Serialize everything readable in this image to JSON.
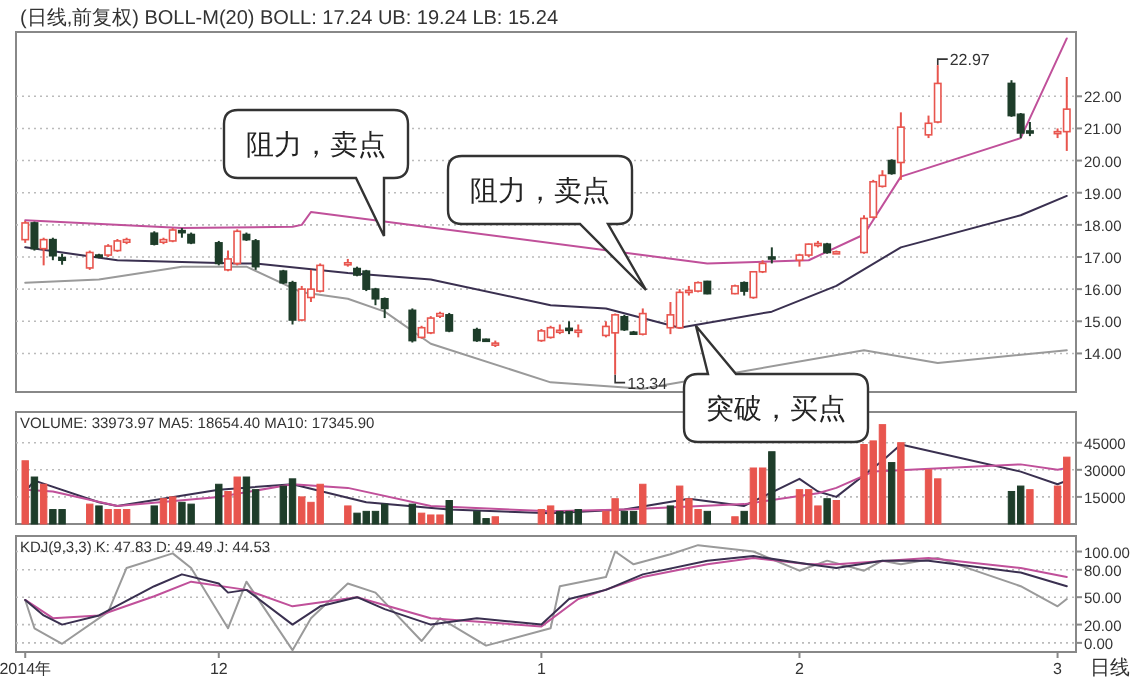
{
  "chart_data": [
    {
      "type": "candlestick",
      "title": "(日线,前复权) BOLL-M(20) BOLL: 17.24 UB: 19.24 LB: 15.24",
      "grid": "y",
      "tick_labels": "y",
      "x": [
        "2014-11-10",
        "2014-11-11",
        "2014-11-12",
        "2014-11-13",
        "2014-11-14",
        "2014-11-17",
        "2014-11-18",
        "2014-11-19",
        "2014-11-20",
        "2014-11-21",
        "2014-11-24",
        "2014-11-25",
        "2014-11-26",
        "2014-11-27",
        "2014-11-28",
        "2014-12-01",
        "2014-12-02",
        "2014-12-03",
        "2014-12-04",
        "2014-12-05",
        "2014-12-08",
        "2014-12-09",
        "2014-12-10",
        "2014-12-11",
        "2014-12-12",
        "2014-12-15",
        "2014-12-16",
        "2014-12-17",
        "2014-12-18",
        "2014-12-19",
        "2014-12-22",
        "2014-12-23",
        "2014-12-24",
        "2014-12-25",
        "2014-12-26",
        "2014-12-29",
        "2014-12-30",
        "2014-12-31",
        "2015-01-05",
        "2015-01-06",
        "2015-01-07",
        "2015-01-08",
        "2015-01-09",
        "2015-01-12",
        "2015-01-13",
        "2015-01-14",
        "2015-01-15",
        "2015-01-16",
        "2015-01-19",
        "2015-01-20",
        "2015-01-21",
        "2015-01-22",
        "2015-01-23",
        "2015-01-26",
        "2015-01-27",
        "2015-01-28",
        "2015-01-29",
        "2015-01-30",
        "2015-02-02",
        "2015-02-03",
        "2015-02-04",
        "2015-02-05",
        "2015-02-06",
        "2015-02-09",
        "2015-02-10",
        "2015-02-11",
        "2015-02-12",
        "2015-02-13",
        "2015-02-16",
        "2015-02-17",
        "2015-02-25",
        "2015-02-26",
        "2015-02-27",
        "2015-03-02",
        "2015-03-03"
      ],
      "xlim": [
        "2014-11-09",
        "2015-03-04"
      ],
      "ylim": [
        12.8,
        24.0
      ],
      "yticks": [
        {
          "value": 14,
          "label": "14.00"
        },
        {
          "value": 15,
          "label": "15.00"
        },
        {
          "value": 16,
          "label": "16.00"
        },
        {
          "value": 17,
          "label": "17.00"
        },
        {
          "value": 18,
          "label": "18.00"
        },
        {
          "value": 19,
          "label": "19.00"
        },
        {
          "value": 20,
          "label": "20.00"
        },
        {
          "value": 21,
          "label": "21.00"
        },
        {
          "value": 22,
          "label": "22.00"
        }
      ],
      "series": [
        {
          "ohlc": [
            [
              17.54,
              18.12,
              17.44,
              18.06
            ],
            [
              18.06,
              18.1,
              17.2,
              17.26
            ],
            [
              17.26,
              17.6,
              16.74,
              17.54
            ],
            [
              17.54,
              17.6,
              16.9,
              17.04
            ],
            [
              16.98,
              17.1,
              16.76,
              16.9
            ],
            [
              16.66,
              17.2,
              16.6,
              17.14
            ],
            [
              17.06,
              17.1,
              16.96,
              17.0
            ],
            [
              17.06,
              17.4,
              17.0,
              17.34
            ],
            [
              17.2,
              17.56,
              17.16,
              17.5
            ],
            [
              17.46,
              17.6,
              17.4,
              17.54
            ],
            [
              17.74,
              17.8,
              17.36,
              17.4
            ],
            [
              17.46,
              17.6,
              17.4,
              17.54
            ],
            [
              17.5,
              17.9,
              17.46,
              17.84
            ],
            [
              17.82,
              17.9,
              17.6,
              17.76
            ],
            [
              17.7,
              17.76,
              17.4,
              17.44
            ],
            [
              17.44,
              17.5,
              16.74,
              16.8
            ],
            [
              16.6,
              17.2,
              16.56,
              16.94
            ],
            [
              16.8,
              17.86,
              16.74,
              17.8
            ],
            [
              17.7,
              17.76,
              17.5,
              17.54
            ],
            [
              17.5,
              17.56,
              16.6,
              16.7
            ],
            [
              16.56,
              16.6,
              16.16,
              16.2
            ],
            [
              16.2,
              16.26,
              14.9,
              15.04
            ],
            [
              15.04,
              16.1,
              15.0,
              16.0
            ],
            [
              15.74,
              16.6,
              15.6,
              16.0
            ],
            [
              15.94,
              16.8,
              15.9,
              16.74
            ],
            [
              16.78,
              16.94,
              16.7,
              16.82
            ],
            [
              16.64,
              16.7,
              16.4,
              16.44
            ],
            [
              16.56,
              16.6,
              15.94,
              16.0
            ],
            [
              16.0,
              16.04,
              15.5,
              15.7
            ],
            [
              15.7,
              15.74,
              15.1,
              15.4
            ],
            [
              15.34,
              15.4,
              14.34,
              14.4
            ],
            [
              14.5,
              14.86,
              14.46,
              14.8
            ],
            [
              14.64,
              15.16,
              14.6,
              15.1
            ],
            [
              15.16,
              15.3,
              15.1,
              15.24
            ],
            [
              15.2,
              15.26,
              14.66,
              14.7
            ],
            [
              14.74,
              14.8,
              14.36,
              14.4
            ],
            [
              14.44,
              14.46,
              14.36,
              14.4
            ],
            [
              14.3,
              14.4,
              14.2,
              14.32
            ],
            [
              14.4,
              14.76,
              14.36,
              14.7
            ],
            [
              14.5,
              14.86,
              14.46,
              14.8
            ],
            [
              14.66,
              14.9,
              14.6,
              14.72
            ],
            [
              14.78,
              15.0,
              14.6,
              14.72
            ],
            [
              14.7,
              14.9,
              14.5,
              14.72
            ],
            [
              14.56,
              15.0,
              14.5,
              14.84
            ],
            [
              14.64,
              15.24,
              13.34,
              15.2
            ],
            [
              15.14,
              15.2,
              14.7,
              14.74
            ],
            [
              14.66,
              14.7,
              14.6,
              14.62
            ],
            [
              14.6,
              15.4,
              14.56,
              15.24
            ],
            [
              14.8,
              15.6,
              14.6,
              15.2
            ],
            [
              14.8,
              16.0,
              14.76,
              15.9
            ],
            [
              15.9,
              16.1,
              15.8,
              15.96
            ],
            [
              15.94,
              16.24,
              15.9,
              16.2
            ],
            [
              16.24,
              16.26,
              15.84,
              15.86
            ],
            [
              15.86,
              16.14,
              15.84,
              16.1
            ],
            [
              16.2,
              16.24,
              15.8,
              15.94
            ],
            [
              15.74,
              16.56,
              15.7,
              16.54
            ],
            [
              16.54,
              16.9,
              16.5,
              16.8
            ],
            [
              17.0,
              17.3,
              16.8,
              16.96
            ],
            [
              16.9,
              17.1,
              16.7,
              17.06
            ],
            [
              17.06,
              17.42,
              17.0,
              17.4
            ],
            [
              17.38,
              17.5,
              17.3,
              17.42
            ],
            [
              17.4,
              17.44,
              17.1,
              17.14
            ],
            [
              17.12,
              17.2,
              17.1,
              17.16
            ],
            [
              17.14,
              18.3,
              17.1,
              18.2
            ],
            [
              18.24,
              19.4,
              18.2,
              19.34
            ],
            [
              19.2,
              19.7,
              19.16,
              19.54
            ],
            [
              20.0,
              20.04,
              19.56,
              19.6
            ],
            [
              19.94,
              21.5,
              19.4,
              21.04
            ],
            [
              20.8,
              21.4,
              20.7,
              21.16
            ],
            [
              21.2,
              22.97,
              21.16,
              22.4
            ],
            [
              22.4,
              22.5,
              21.36,
              21.4
            ],
            [
              21.44,
              21.48,
              20.7,
              20.86
            ],
            [
              20.92,
              21.2,
              20.76,
              20.9
            ],
            [
              20.86,
              21.0,
              20.7,
              20.9
            ],
            [
              20.9,
              22.6,
              20.3,
              21.6
            ]
          ],
          "colors": [
            "#e8554e",
            "#1e3d2a",
            "#e8554e",
            "#1e3d2a",
            "#1e3d2a",
            "#e8554e",
            "#1e3d2a",
            "#e8554e",
            "#e8554e",
            "#e8554e",
            "#1e3d2a",
            "#e8554e",
            "#e8554e",
            "#1e3d2a",
            "#1e3d2a",
            "#1e3d2a",
            "#e8554e",
            "#e8554e",
            "#1e3d2a",
            "#1e3d2a",
            "#1e3d2a",
            "#1e3d2a",
            "#e8554e",
            "#e8554e",
            "#e8554e",
            "#e8554e",
            "#1e3d2a",
            "#1e3d2a",
            "#1e3d2a",
            "#1e3d2a",
            "#1e3d2a",
            "#e8554e",
            "#e8554e",
            "#e8554e",
            "#1e3d2a",
            "#1e3d2a",
            "#1e3d2a",
            "#e8554e",
            "#e8554e",
            "#e8554e",
            "#e8554e",
            "#1e3d2a",
            "#e8554e",
            "#e8554e",
            "#e8554e",
            "#1e3d2a",
            "#1e3d2a",
            "#e8554e",
            "#e8554e",
            "#e8554e",
            "#e8554e",
            "#e8554e",
            "#1e3d2a",
            "#e8554e",
            "#1e3d2a",
            "#e8554e",
            "#e8554e",
            "#1e3d2a",
            "#e8554e",
            "#e8554e",
            "#e8554e",
            "#1e3d2a",
            "#e8554e",
            "#e8554e",
            "#e8554e",
            "#e8554e",
            "#1e3d2a",
            "#e8554e",
            "#e8554e",
            "#e8554e",
            "#1e3d2a",
            "#1e3d2a",
            "#1e3d2a",
            "#e8554e",
            "#e8554e"
          ]
        },
        {
          "type": "line",
          "color": "#c0509a",
          "x": [
            "2014-11-10",
            "2014-11-27",
            "2014-12-09",
            "2014-12-10",
            "2014-12-11",
            "2015-01-23",
            "2015-02-03",
            "2015-02-09",
            "2015-02-13",
            "2015-02-26",
            "2015-03-03"
          ],
          "values": [
            18.14,
            17.9,
            17.94,
            18.0,
            18.4,
            16.8,
            16.9,
            17.7,
            19.5,
            20.7,
            23.8
          ]
        },
        {
          "type": "line",
          "color": "#3a3050",
          "x": [
            "2014-11-10",
            "2014-11-20",
            "2014-12-03",
            "2014-12-05",
            "2014-12-15",
            "2014-12-24",
            "2015-01-06",
            "2015-01-12",
            "2015-01-20",
            "2015-01-30",
            "2015-02-06",
            "2015-02-13",
            "2015-02-26",
            "2015-03-03"
          ],
          "values": [
            17.3,
            16.9,
            16.8,
            16.8,
            16.5,
            16.3,
            15.5,
            15.4,
            14.8,
            15.3,
            16.1,
            17.3,
            18.3,
            18.9
          ]
        },
        {
          "type": "line",
          "color": "#9a9a9a",
          "x": [
            "2014-11-10",
            "2014-11-18",
            "2014-11-27",
            "2014-12-04",
            "2014-12-10",
            "2014-12-15",
            "2014-12-19",
            "2014-12-24",
            "2015-01-06",
            "2015-01-16",
            "2015-02-09",
            "2015-02-17",
            "2015-03-03"
          ],
          "values": [
            16.2,
            16.3,
            16.7,
            16.7,
            15.9,
            15.7,
            15.3,
            14.3,
            13.1,
            12.9,
            14.1,
            13.7,
            14.1
          ]
        }
      ],
      "annotations": [
        "阻力，卖点",
        "阻力，卖点",
        "突破，买点",
        {
          "text": "22.97",
          "x": "2015-02-17",
          "y": 22.97
        },
        {
          "text": "13.34",
          "x": "2015-01-13",
          "y": 13.34
        }
      ]
    },
    {
      "type": "bar",
      "title": "VOLUME: 33973.97 MA5: 18654.40 MA10: 17345.90",
      "grid": "y",
      "tick_labels": "y",
      "x": [
        "2014-11-10",
        "2014-11-11",
        "2014-11-12",
        "2014-11-13",
        "2014-11-14",
        "2014-11-17",
        "2014-11-18",
        "2014-11-19",
        "2014-11-20",
        "2014-11-21",
        "2014-11-24",
        "2014-11-25",
        "2014-11-26",
        "2014-11-27",
        "2014-11-28",
        "2014-12-01",
        "2014-12-02",
        "2014-12-03",
        "2014-12-04",
        "2014-12-05",
        "2014-12-08",
        "2014-12-09",
        "2014-12-10",
        "2014-12-11",
        "2014-12-12",
        "2014-12-15",
        "2014-12-16",
        "2014-12-17",
        "2014-12-18",
        "2014-12-19",
        "2014-12-22",
        "2014-12-23",
        "2014-12-24",
        "2014-12-25",
        "2014-12-26",
        "2014-12-29",
        "2014-12-30",
        "2014-12-31",
        "2015-01-05",
        "2015-01-06",
        "2015-01-07",
        "2015-01-08",
        "2015-01-09",
        "2015-01-12",
        "2015-01-13",
        "2015-01-14",
        "2015-01-15",
        "2015-01-16",
        "2015-01-19",
        "2015-01-20",
        "2015-01-21",
        "2015-01-22",
        "2015-01-23",
        "2015-01-26",
        "2015-01-27",
        "2015-01-28",
        "2015-01-29",
        "2015-01-30",
        "2015-02-02",
        "2015-02-03",
        "2015-02-04",
        "2015-02-05",
        "2015-02-06",
        "2015-02-09",
        "2015-02-10",
        "2015-02-11",
        "2015-02-12",
        "2015-02-13",
        "2015-02-16",
        "2015-02-17",
        "2015-02-25",
        "2015-02-26",
        "2015-02-27",
        "2015-03-02",
        "2015-03-03"
      ],
      "xlim": [
        "2014-11-09",
        "2015-03-04"
      ],
      "ylim": [
        0,
        62000
      ],
      "yticks": [
        15000,
        30000,
        45000
      ],
      "series": [
        {
          "values": [
            35000,
            26000,
            22000,
            8000,
            8000,
            11000,
            10000,
            8000,
            8000,
            8000,
            10000,
            14000,
            15000,
            12000,
            11000,
            22000,
            18000,
            26000,
            26000,
            19000,
            21000,
            25000,
            15000,
            12000,
            22000,
            10000,
            6000,
            7000,
            7000,
            11000,
            11000,
            6000,
            5000,
            5000,
            13000,
            7000,
            3000,
            4000,
            8000,
            10000,
            7000,
            7000,
            8000,
            7000,
            14000,
            7000,
            7000,
            22000,
            10000,
            21000,
            14000,
            8000,
            7000,
            4000,
            7000,
            31000,
            31000,
            40000,
            19000,
            19000,
            10000,
            14000,
            13000,
            44000,
            46000,
            55000,
            34000,
            45000,
            30000,
            25000,
            18000,
            21000,
            19000,
            21000,
            37000
          ],
          "colors": [
            "#e8554e",
            "#1e3d2a",
            "#e8554e",
            "#1e3d2a",
            "#1e3d2a",
            "#e8554e",
            "#1e3d2a",
            "#e8554e",
            "#e8554e",
            "#e8554e",
            "#1e3d2a",
            "#e8554e",
            "#e8554e",
            "#1e3d2a",
            "#1e3d2a",
            "#1e3d2a",
            "#e8554e",
            "#e8554e",
            "#1e3d2a",
            "#1e3d2a",
            "#1e3d2a",
            "#1e3d2a",
            "#e8554e",
            "#e8554e",
            "#e8554e",
            "#e8554e",
            "#1e3d2a",
            "#1e3d2a",
            "#1e3d2a",
            "#1e3d2a",
            "#1e3d2a",
            "#e8554e",
            "#e8554e",
            "#e8554e",
            "#1e3d2a",
            "#1e3d2a",
            "#1e3d2a",
            "#e8554e",
            "#e8554e",
            "#e8554e",
            "#1e3d2a",
            "#1e3d2a",
            "#1e3d2a",
            "#e8554e",
            "#e8554e",
            "#1e3d2a",
            "#1e3d2a",
            "#e8554e",
            "#1e3d2a",
            "#e8554e",
            "#e8554e",
            "#e8554e",
            "#1e3d2a",
            "#e8554e",
            "#1e3d2a",
            "#e8554e",
            "#e8554e",
            "#1e3d2a",
            "#e8554e",
            "#e8554e",
            "#e8554e",
            "#1e3d2a",
            "#e8554e",
            "#e8554e",
            "#e8554e",
            "#e8554e",
            "#1e3d2a",
            "#e8554e",
            "#e8554e",
            "#e8554e",
            "#1e3d2a",
            "#1e3d2a",
            "#e8554e",
            "#e8554e",
            "#e8554e"
          ]
        },
        {
          "type": "line",
          "color": "#3a3050",
          "x": [
            "2014-11-10",
            "2014-11-11",
            "2014-11-18",
            "2014-11-20",
            "2014-12-01",
            "2014-12-09",
            "2014-12-17",
            "2014-12-26",
            "2015-01-06",
            "2015-01-14",
            "2015-01-21",
            "2015-01-27",
            "2015-02-02",
            "2015-02-04",
            "2015-02-06",
            "2015-02-11",
            "2015-02-13",
            "2015-02-26",
            "2015-03-02",
            "2015-03-03"
          ],
          "values": [
            18000,
            24000,
            12000,
            10000,
            19000,
            22000,
            12000,
            8000,
            6000,
            8000,
            14000,
            10000,
            25000,
            18000,
            15000,
            35000,
            44000,
            29000,
            22000,
            24000
          ]
        },
        {
          "type": "line",
          "color": "#c0509a",
          "x": [
            "2014-11-10",
            "2014-11-13",
            "2014-11-20",
            "2014-12-01",
            "2014-12-09",
            "2014-12-15",
            "2014-12-24",
            "2015-01-06",
            "2015-01-14",
            "2015-01-27",
            "2015-02-04",
            "2015-02-06",
            "2015-02-10",
            "2015-02-26",
            "2015-03-02",
            "2015-03-03"
          ],
          "values": [
            19000,
            18000,
            10000,
            15000,
            22000,
            20000,
            10000,
            7000,
            8000,
            11000,
            17000,
            20000,
            29000,
            33000,
            30000,
            31000
          ]
        }
      ]
    },
    {
      "type": "line",
      "title": "KDJ(9,3,3) K: 47.83 D: 49.49 J: 44.53",
      "grid": "y",
      "xlim": [
        "2014-11-09",
        "2015-03-04"
      ],
      "ylim": [
        -10,
        117
      ],
      "xticks": [
        {
          "value": "2014-11-10",
          "label": "2014年"
        },
        {
          "value": "2014-12-01",
          "label": "12"
        },
        {
          "value": "2015-01-05",
          "label": "1"
        },
        {
          "value": "2015-02-02",
          "label": "2"
        },
        {
          "value": "2015-03-02",
          "label": "3"
        }
      ],
      "yticks": [
        {
          "value": 0,
          "label": "0.00"
        },
        {
          "value": 20,
          "label": "20.00"
        },
        {
          "value": 50,
          "label": "50.00"
        },
        {
          "value": 80,
          "label": "80.00"
        },
        {
          "value": 100,
          "label": "100.00"
        }
      ],
      "series": [
        {
          "color": "#9a9a9a",
          "x": [
            "2014-11-10",
            "2014-11-11",
            "2014-11-14",
            "2014-11-19",
            "2014-11-21",
            "2014-11-26",
            "2014-11-28",
            "2014-12-02",
            "2014-12-04",
            "2014-12-09",
            "2014-12-11",
            "2014-12-15",
            "2014-12-18",
            "2014-12-23",
            "2014-12-25",
            "2014-12-30",
            "2015-01-06",
            "2015-01-07",
            "2015-01-12",
            "2015-01-13",
            "2015-01-15",
            "2015-01-19",
            "2015-01-22",
            "2015-01-28",
            "2015-02-02",
            "2015-02-05",
            "2015-02-09",
            "2015-02-11",
            "2015-02-13",
            "2015-02-17",
            "2015-02-26",
            "2015-03-02",
            "2015-03-03"
          ],
          "values": [
            47,
            16,
            -1,
            34,
            82,
            98,
            82,
            16,
            67,
            -8,
            27,
            65,
            55,
            2,
            27,
            -3,
            16,
            62,
            72,
            100,
            86,
            97,
            107,
            100,
            79,
            90,
            79,
            90,
            86,
            93,
            62,
            40,
            48
          ]
        },
        {
          "color": "#c0509a",
          "x": [
            "2014-11-10",
            "2014-11-13",
            "2014-11-18",
            "2014-11-24",
            "2014-11-28",
            "2014-12-04",
            "2014-12-09",
            "2014-12-16",
            "2014-12-24",
            "2015-01-05",
            "2015-01-09",
            "2015-01-16",
            "2015-01-23",
            "2015-01-28",
            "2015-02-03",
            "2015-02-06",
            "2015-02-16",
            "2015-02-26",
            "2015-03-03"
          ],
          "values": [
            47,
            27,
            30,
            51,
            67,
            58,
            40,
            50,
            27,
            18,
            48,
            72,
            86,
            93,
            86,
            86,
            93,
            82,
            72
          ]
        },
        {
          "color": "#3a3050",
          "x": [
            "2014-11-10",
            "2014-11-12",
            "2014-11-14",
            "2014-11-18",
            "2014-11-24",
            "2014-11-27",
            "2014-12-01",
            "2014-12-02",
            "2014-12-04",
            "2014-12-09",
            "2014-12-12",
            "2014-12-16",
            "2014-12-19",
            "2014-12-24",
            "2014-12-29",
            "2015-01-05",
            "2015-01-08",
            "2015-01-12",
            "2015-01-16",
            "2015-01-23",
            "2015-01-28",
            "2015-02-03",
            "2015-02-06",
            "2015-02-11",
            "2015-02-16",
            "2015-02-26",
            "2015-03-02",
            "2015-03-03"
          ],
          "values": [
            47,
            30,
            20,
            30,
            62,
            75,
            65,
            55,
            58,
            20,
            40,
            50,
            37,
            20,
            27,
            20,
            48,
            58,
            75,
            90,
            95,
            86,
            82,
            90,
            90,
            77,
            65,
            62
          ]
        }
      ],
      "annotations": [
        "日线"
      ]
    }
  ]
}
